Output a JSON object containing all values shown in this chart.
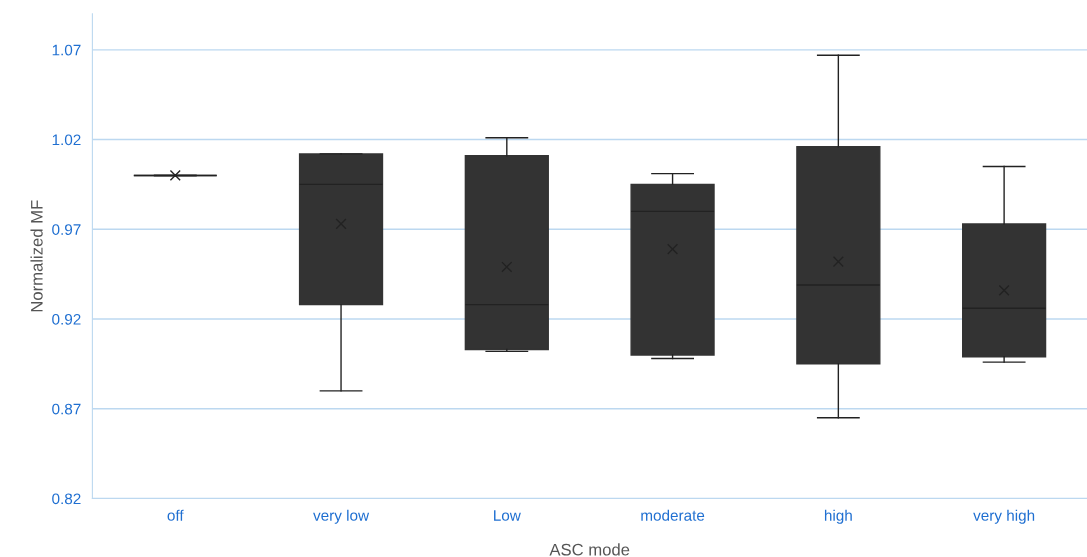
{
  "chart_data": {
    "type": "box",
    "xlabel": "ASC mode",
    "ylabel": "Normalized MF",
    "categories": [
      "off",
      "very low",
      "Low",
      "moderate",
      "high",
      "very high"
    ],
    "boxes": [
      {
        "low": 1.0,
        "q1": 1.0,
        "median": 1.0,
        "q3": 1.0,
        "high": 1.0,
        "mean": 1.0
      },
      {
        "low": 0.88,
        "q1": 0.928,
        "median": 0.995,
        "q3": 1.012,
        "high": 1.012,
        "mean": 0.973
      },
      {
        "low": 0.902,
        "q1": 0.903,
        "median": 0.928,
        "q3": 1.011,
        "high": 1.021,
        "mean": 0.949
      },
      {
        "low": 0.898,
        "q1": 0.9,
        "median": 0.98,
        "q3": 0.995,
        "high": 1.001,
        "mean": 0.959
      },
      {
        "low": 0.865,
        "q1": 0.895,
        "median": 0.939,
        "q3": 1.016,
        "high": 1.067,
        "mean": 0.952
      },
      {
        "low": 0.896,
        "q1": 0.899,
        "median": 0.926,
        "q3": 0.973,
        "high": 1.005,
        "mean": 0.936
      }
    ],
    "color": "#333333",
    "ylim": [
      0.82,
      1.09
    ],
    "yticks": [
      0.82,
      0.87,
      0.92,
      0.97,
      1.02,
      1.07
    ],
    "grid": "y",
    "marker": "cross"
  }
}
